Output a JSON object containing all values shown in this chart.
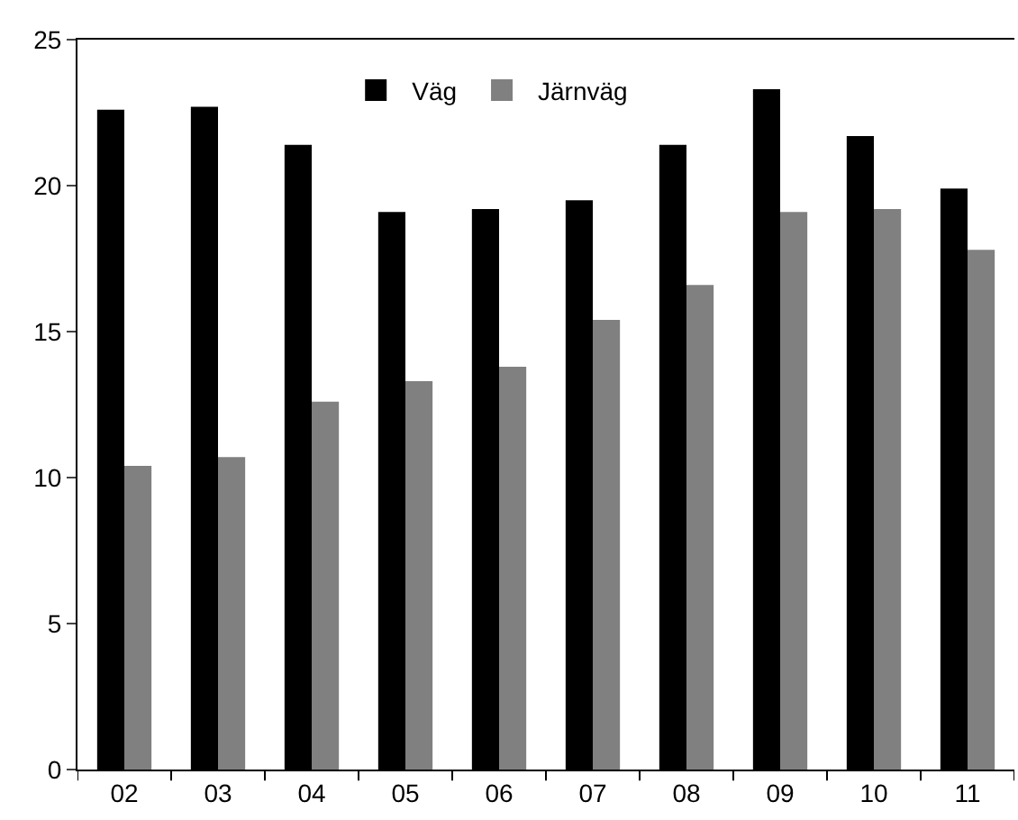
{
  "chart_data": {
    "type": "bar",
    "categories": [
      "02",
      "03",
      "04",
      "05",
      "06",
      "07",
      "08",
      "09",
      "10",
      "11"
    ],
    "series": [
      {
        "name": "Väg",
        "color": "#000000",
        "values": [
          22.6,
          22.7,
          21.4,
          19.1,
          19.2,
          19.5,
          21.4,
          23.3,
          21.7,
          19.9
        ]
      },
      {
        "name": "Järnväg",
        "color": "#808080",
        "values": [
          10.4,
          10.7,
          12.6,
          13.3,
          13.8,
          15.4,
          16.6,
          19.1,
          19.2,
          17.8
        ]
      }
    ],
    "ylim": [
      0,
      25
    ],
    "yticks": [
      0,
      5,
      10,
      15,
      20,
      25
    ],
    "legend": "top"
  }
}
